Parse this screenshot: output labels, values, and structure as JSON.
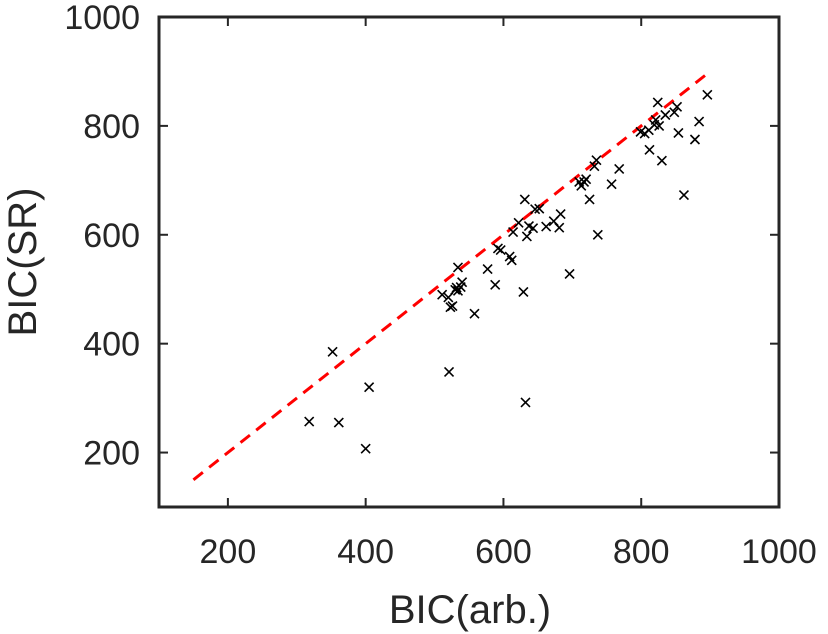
{
  "chart_data": {
    "type": "scatter",
    "title": "",
    "xlabel": "BIC(arb.)",
    "ylabel": "BIC(SR)",
    "xlim": [
      100,
      1000
    ],
    "ylim": [
      100,
      1000
    ],
    "x_ticks": [
      200,
      400,
      600,
      800,
      1000
    ],
    "y_ticks": [
      200,
      400,
      600,
      800,
      1000
    ],
    "grid": false,
    "marker": "x",
    "marker_color": "#000000",
    "reference_line": {
      "style": "dashed",
      "color": "#ff0000",
      "from": [
        150,
        150
      ],
      "to": [
        900,
        900
      ]
    },
    "series": [
      {
        "points": [
          [
            318,
            257
          ],
          [
            352,
            385
          ],
          [
            361,
            255
          ],
          [
            400,
            207
          ],
          [
            405,
            320
          ],
          [
            511,
            490
          ],
          [
            520,
            485
          ],
          [
            523,
            467
          ],
          [
            526,
            469
          ],
          [
            530,
            499
          ],
          [
            532,
            503
          ],
          [
            534,
            497
          ],
          [
            534,
            540
          ],
          [
            538,
            504
          ],
          [
            540,
            513
          ],
          [
            521,
            348
          ],
          [
            558,
            455
          ],
          [
            577,
            537
          ],
          [
            588,
            508
          ],
          [
            592,
            575
          ],
          [
            596,
            572
          ],
          [
            609,
            560
          ],
          [
            612,
            553
          ],
          [
            614,
            605
          ],
          [
            622,
            622
          ],
          [
            629,
            495
          ],
          [
            631,
            665
          ],
          [
            632,
            292
          ],
          [
            634,
            597
          ],
          [
            637,
            616
          ],
          [
            643,
            612
          ],
          [
            646,
            647
          ],
          [
            652,
            648
          ],
          [
            662,
            615
          ],
          [
            673,
            625
          ],
          [
            681,
            613
          ],
          [
            683,
            638
          ],
          [
            696,
            528
          ],
          [
            710,
            697
          ],
          [
            713,
            690
          ],
          [
            717,
            697
          ],
          [
            720,
            702
          ],
          [
            725,
            665
          ],
          [
            732,
            726
          ],
          [
            735,
            737
          ],
          [
            737,
            600
          ],
          [
            757,
            693
          ],
          [
            768,
            721
          ],
          [
            799,
            789
          ],
          [
            805,
            786
          ],
          [
            811,
            792
          ],
          [
            812,
            756
          ],
          [
            819,
            802
          ],
          [
            821,
            811
          ],
          [
            824,
            843
          ],
          [
            826,
            800
          ],
          [
            830,
            736
          ],
          [
            835,
            820
          ],
          [
            848,
            825
          ],
          [
            852,
            835
          ],
          [
            854,
            787
          ],
          [
            862,
            673
          ],
          [
            878,
            775
          ],
          [
            884,
            808
          ],
          [
            896,
            857
          ]
        ]
      }
    ]
  }
}
